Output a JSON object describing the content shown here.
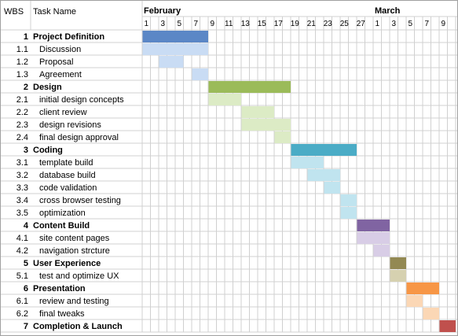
{
  "chart_data": {
    "type": "gantt",
    "columns": {
      "wbs": "WBS",
      "task": "Task Name"
    },
    "months": [
      {
        "label": "February",
        "start_day": 0
      },
      {
        "label": "March",
        "start_day": 28
      }
    ],
    "day_ticks": [
      {
        "day": 1,
        "label": "1"
      },
      {
        "day": 3,
        "label": "3"
      },
      {
        "day": 5,
        "label": "5"
      },
      {
        "day": 7,
        "label": "7"
      },
      {
        "day": 9,
        "label": "9"
      },
      {
        "day": 11,
        "label": "11"
      },
      {
        "day": 13,
        "label": "13"
      },
      {
        "day": 15,
        "label": "15"
      },
      {
        "day": 17,
        "label": "17"
      },
      {
        "day": 19,
        "label": "19"
      },
      {
        "day": 21,
        "label": "21"
      },
      {
        "day": 23,
        "label": "23"
      },
      {
        "day": 25,
        "label": "25"
      },
      {
        "day": 27,
        "label": "27"
      },
      {
        "day": 29,
        "label": "1"
      },
      {
        "day": 31,
        "label": "3"
      },
      {
        "day": 33,
        "label": "5"
      },
      {
        "day": 35,
        "label": "7"
      },
      {
        "day": 37,
        "label": "9"
      }
    ],
    "tasks": [
      {
        "wbs": "1",
        "name": "Project Definition",
        "summary": true,
        "start": 1,
        "end": 8,
        "color": "#5b87c6"
      },
      {
        "wbs": "1.1",
        "name": "Discussion",
        "summary": false,
        "start": 1,
        "end": 8,
        "color": "#c9dcf4"
      },
      {
        "wbs": "1.2",
        "name": "Proposal",
        "summary": false,
        "start": 3,
        "end": 5,
        "color": "#c9dcf4"
      },
      {
        "wbs": "1.3",
        "name": "Agreement",
        "summary": false,
        "start": 7,
        "end": 8,
        "color": "#c9dcf4"
      },
      {
        "wbs": "2",
        "name": "Design",
        "summary": true,
        "start": 9,
        "end": 18,
        "color": "#9bbb59"
      },
      {
        "wbs": "2.1",
        "name": "initial design concepts",
        "summary": false,
        "start": 9,
        "end": 12,
        "color": "#dcebc5"
      },
      {
        "wbs": "2.2",
        "name": "client review",
        "summary": false,
        "start": 13,
        "end": 16,
        "color": "#dcebc5"
      },
      {
        "wbs": "2.3",
        "name": "design revisions",
        "summary": false,
        "start": 13,
        "end": 18,
        "color": "#dcebc5"
      },
      {
        "wbs": "2.4",
        "name": "final design approval",
        "summary": false,
        "start": 17,
        "end": 18,
        "color": "#dcebc5"
      },
      {
        "wbs": "3",
        "name": "Coding",
        "summary": true,
        "start": 19,
        "end": 26,
        "color": "#4bacc6"
      },
      {
        "wbs": "3.1",
        "name": "template build",
        "summary": false,
        "start": 19,
        "end": 22,
        "color": "#c0e4ef"
      },
      {
        "wbs": "3.2",
        "name": "database build",
        "summary": false,
        "start": 21,
        "end": 24,
        "color": "#c0e4ef"
      },
      {
        "wbs": "3.3",
        "name": "code validation",
        "summary": false,
        "start": 23,
        "end": 24,
        "color": "#c0e4ef"
      },
      {
        "wbs": "3.4",
        "name": "cross browser testing",
        "summary": false,
        "start": 25,
        "end": 26,
        "color": "#c0e4ef"
      },
      {
        "wbs": "3.5",
        "name": "optimization",
        "summary": false,
        "start": 25,
        "end": 26,
        "color": "#c0e4ef"
      },
      {
        "wbs": "4",
        "name": "Content Build",
        "summary": true,
        "start": 27,
        "end": 30,
        "color": "#8064a2"
      },
      {
        "wbs": "4.1",
        "name": "site content pages",
        "summary": false,
        "start": 27,
        "end": 30,
        "color": "#d8cde6"
      },
      {
        "wbs": "4.2",
        "name": "navigation strcture",
        "summary": false,
        "start": 29,
        "end": 30,
        "color": "#d8cde6"
      },
      {
        "wbs": "5",
        "name": "User Experience",
        "summary": true,
        "start": 31,
        "end": 32,
        "color": "#938953"
      },
      {
        "wbs": "5.1",
        "name": "test and optimize UX",
        "summary": false,
        "start": 31,
        "end": 32,
        "color": "#d6d1b0"
      },
      {
        "wbs": "6",
        "name": "Presentation",
        "summary": true,
        "start": 33,
        "end": 36,
        "color": "#f79646"
      },
      {
        "wbs": "6.1",
        "name": "review and testing",
        "summary": false,
        "start": 33,
        "end": 34,
        "color": "#fbd7b5"
      },
      {
        "wbs": "6.2",
        "name": "final tweaks",
        "summary": false,
        "start": 35,
        "end": 36,
        "color": "#fbd7b5"
      },
      {
        "wbs": "7",
        "name": "Completion & Launch",
        "summary": true,
        "start": 37,
        "end": 38,
        "color": "#c0504d"
      }
    ]
  }
}
